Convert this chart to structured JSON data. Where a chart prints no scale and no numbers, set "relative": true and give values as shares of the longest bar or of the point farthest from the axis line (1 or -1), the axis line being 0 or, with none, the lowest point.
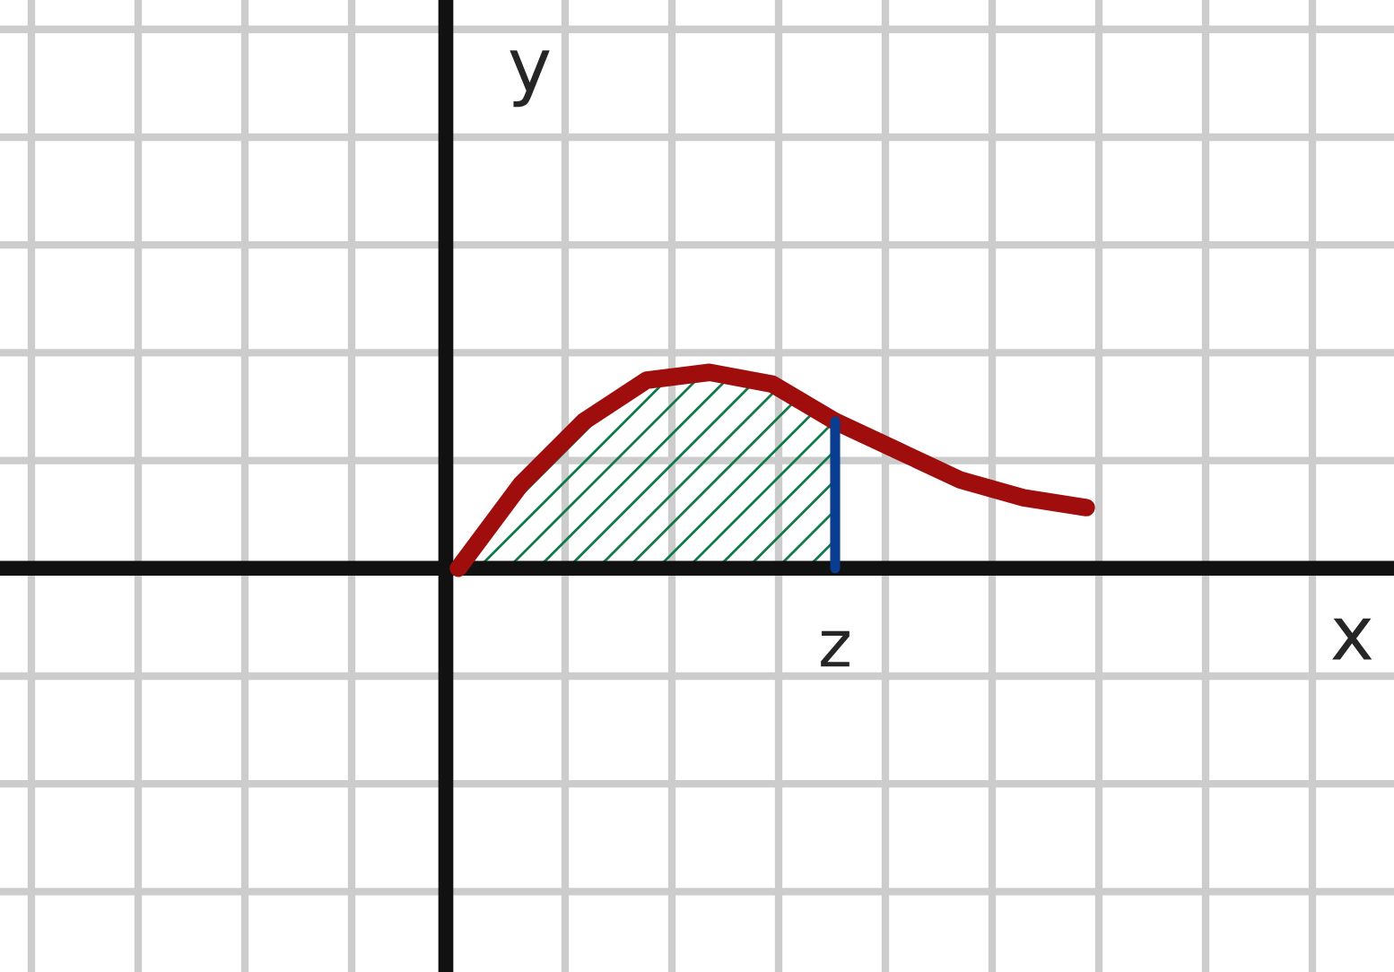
{
  "chart_data": {
    "type": "line",
    "relative": true,
    "xlabel": "x",
    "ylabel": "y",
    "categories": [
      null,
      null,
      null,
      null,
      null,
      null,
      null,
      null,
      null,
      null,
      null
    ],
    "series": [
      {
        "type": "area",
        "color": "#0e7a48",
        "values": [
          0,
          0.43,
          0.75,
          0.96,
          1.0,
          0.94,
          0.75,
          null,
          null,
          null,
          null
        ]
      },
      {
        "color": "#a00d0d",
        "values": [
          0,
          0.43,
          0.75,
          0.96,
          1.0,
          0.94,
          0.75,
          0.6,
          0.45,
          0.36,
          0.31
        ]
      }
    ],
    "annotations": [
      "z"
    ],
    "grid": true,
    "legend": false
  }
}
